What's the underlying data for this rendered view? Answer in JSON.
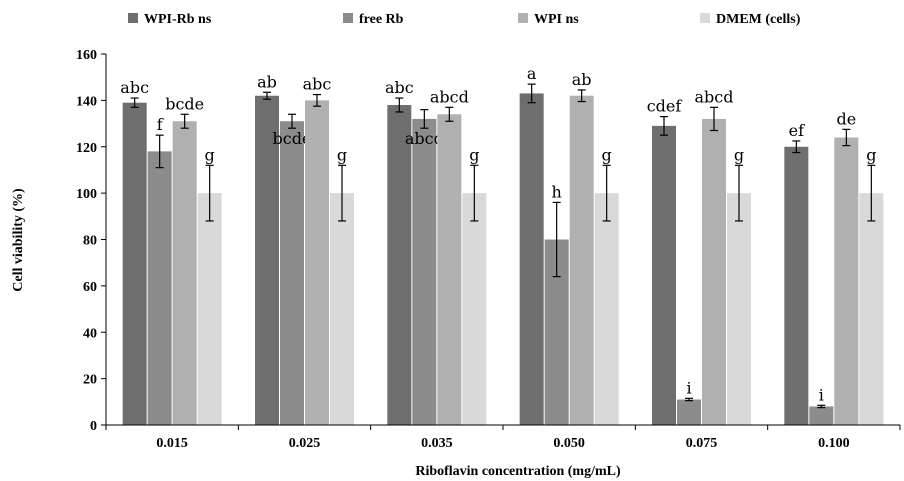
{
  "chart_data": {
    "type": "bar",
    "xlabel": "Riboflavin concentration (mg/mL)",
    "ylabel": "Cell viability  (%)",
    "ylim": [
      0,
      160
    ],
    "yticks": [
      0,
      20,
      40,
      60,
      80,
      100,
      120,
      140,
      160
    ],
    "categories": [
      "0.015",
      "0.025",
      "0.035",
      "0.050",
      "0.075",
      "0.100"
    ],
    "legend_position": "top",
    "series": [
      {
        "name": "WPI-Rb ns",
        "color": "#6e6e6e",
        "values": [
          139,
          142,
          138,
          143,
          129,
          120
        ],
        "errors": [
          2,
          1.5,
          3,
          4,
          4,
          2.5
        ],
        "labels": [
          "abc",
          "ab",
          "abc",
          "a",
          "cdef",
          "ef"
        ]
      },
      {
        "name": "free Rb",
        "color": "#8c8c8c",
        "values": [
          118,
          131,
          132,
          80,
          11,
          8
        ],
        "errors": [
          7,
          3,
          4,
          16,
          0.5,
          0.5
        ],
        "labels": [
          "f",
          "bcde",
          "abcd",
          "h",
          "i",
          "i"
        ]
      },
      {
        "name": "WPI ns",
        "color": "#b0b0b0",
        "values": [
          131,
          140,
          134,
          142,
          132,
          124
        ],
        "errors": [
          3,
          2.5,
          3,
          2.5,
          5,
          3.5
        ],
        "labels": [
          "bcde",
          "abc",
          "abcd",
          "ab",
          "abcd",
          "de"
        ]
      },
      {
        "name": "DMEM (cells)",
        "color": "#d9d9d9",
        "values": [
          100,
          100,
          100,
          100,
          100,
          100
        ],
        "errors": [
          12,
          12,
          12,
          12,
          12,
          12
        ],
        "labels": [
          "g",
          "g",
          "g",
          "g",
          "g",
          "g"
        ]
      }
    ]
  }
}
